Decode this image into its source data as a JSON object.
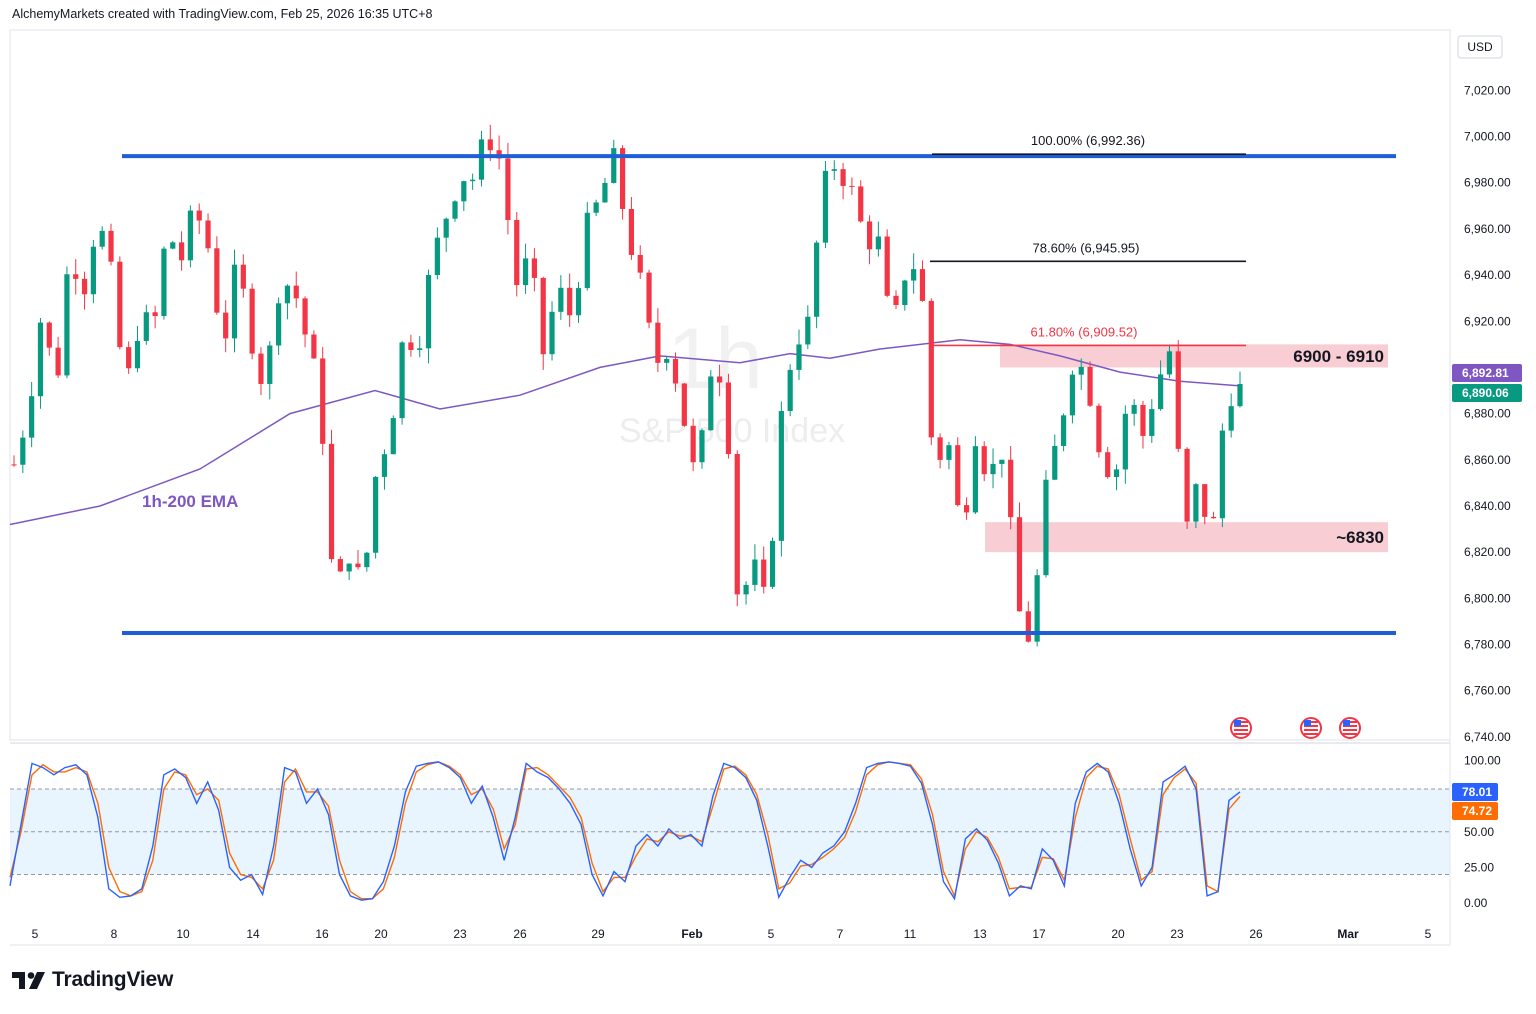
{
  "header": {
    "credit": "AlchemyMarkets created with TradingView.com, Feb 25, 2026 16:35 UTC+8"
  },
  "logo": {
    "text": "TradingView",
    "icon": "tradingview-logo-icon"
  },
  "chart_data": [
    {
      "type": "candlestick",
      "watermark": {
        "symbol": "1h",
        "name": "S&P 500 Index"
      },
      "currency": "USD",
      "y_ticks": [
        "7,020.00",
        "7,000.00",
        "6,980.00",
        "6,960.00",
        "6,940.00",
        "6,920.00",
        "6,880.00",
        "6,860.00",
        "6,840.00",
        "6,820.00",
        "6,800.00",
        "6,780.00",
        "6,760.00",
        "6,740.00"
      ],
      "ylim": [
        6740,
        7030
      ],
      "x_ticks": [
        "5",
        "8",
        "10",
        "14",
        "16",
        "20",
        "23",
        "26",
        "29",
        "Feb",
        "5",
        "7",
        "11",
        "13",
        "17",
        "20",
        "23",
        "26",
        "Mar",
        "5"
      ],
      "last_prices": [
        {
          "label": "6,892.81",
          "value": 6892.81,
          "color": "#7e57c2"
        },
        {
          "label": "6,890.06",
          "value": 6890.06,
          "color": "#089981"
        }
      ],
      "ema": {
        "label": "1h-200 EMA",
        "color": "#7e57c2"
      },
      "channel": {
        "top": 6991.5,
        "bottom": 6785,
        "color": "#1e5fd8"
      },
      "fib_levels": [
        {
          "label": "100.00% (6,992.36)",
          "value": 6992.36,
          "color": "#131722"
        },
        {
          "label": "78.60% (6,945.95)",
          "value": 6945.95,
          "color": "#131722"
        },
        {
          "label": "61.80% (6,909.52)",
          "value": 6909.52,
          "color": "#f23645"
        }
      ],
      "zones": [
        {
          "label": "6900 - 6910",
          "from": 6900,
          "to": 6910,
          "color": "#f7c6cc"
        },
        {
          "label": "~6830",
          "from": 6820,
          "to": 6833,
          "color": "#f7c6cc"
        }
      ],
      "candle_colors": {
        "up": "#089981",
        "down": "#f23645"
      },
      "price_path": [
        6858,
        6882,
        6925,
        6890,
        6952,
        6935,
        6966,
        6938,
        6888,
        6922,
        6915,
        6960,
        6947,
        6969,
        6951,
        6909,
        6944,
        6915,
        6890,
        6935,
        6937,
        6912,
        6886,
        6796,
        6822,
        6803,
        6855,
        6874,
        6915,
        6911,
        6945,
        6966,
        6984,
        6982,
        7002,
        6988,
        6936,
        6946,
        6906,
        6934,
        6922,
        6958,
        6972,
        6990,
        6961,
        6934,
        6901,
        6911,
        6881,
        6847,
        6900,
        6898,
        6795,
        6815,
        6795,
        6875,
        6913,
        6918,
        6975,
        6990,
        6978,
        6957,
        6955,
        6912,
        6943,
        6946,
        6856,
        6870,
        6827,
        6873,
        6852,
        6866,
        6796,
        6781,
        6843,
        6872,
        6904,
        6897,
        6864,
        6852,
        6889,
        6870,
        6893,
        6908,
        6825,
        6850,
        6825,
        6890,
        6890
      ],
      "stoch_ticks": [
        "100.00",
        "50.00",
        "25.00",
        "0.00"
      ],
      "stoch_values": [
        {
          "label": "78.01",
          "value": 78.01,
          "color": "#2962ff"
        },
        {
          "label": "74.72",
          "value": 74.72,
          "color": "#ff6d00"
        }
      ],
      "stoch_k": [
        12,
        55,
        98,
        95,
        90,
        95,
        97,
        90,
        60,
        10,
        4,
        5,
        10,
        40,
        90,
        94,
        88,
        70,
        85,
        65,
        25,
        16,
        20,
        6,
        40,
        95,
        92,
        70,
        80,
        62,
        20,
        5,
        2,
        3,
        15,
        40,
        78,
        96,
        98,
        99,
        95,
        88,
        70,
        82,
        60,
        30,
        60,
        98,
        92,
        88,
        80,
        70,
        55,
        20,
        5,
        22,
        15,
        40,
        48,
        40,
        52,
        45,
        48,
        40,
        75,
        98,
        95,
        88,
        72,
        40,
        4,
        18,
        30,
        25,
        35,
        40,
        50,
        70,
        95,
        98,
        99,
        98,
        96,
        84,
        55,
        15,
        3,
        45,
        52,
        44,
        28,
        5,
        12,
        10,
        38,
        30,
        12,
        70,
        92,
        98,
        92,
        70,
        38,
        12,
        25,
        85,
        90,
        96,
        80,
        5,
        8,
        72,
        78
      ],
      "stoch_d": [
        18,
        50,
        90,
        97,
        92,
        92,
        95,
        92,
        70,
        25,
        8,
        5,
        8,
        30,
        80,
        92,
        90,
        76,
        80,
        72,
        35,
        20,
        18,
        10,
        30,
        85,
        94,
        78,
        78,
        68,
        30,
        8,
        3,
        3,
        10,
        32,
        70,
        92,
        97,
        99,
        96,
        90,
        76,
        80,
        66,
        38,
        55,
        94,
        95,
        90,
        82,
        74,
        60,
        28,
        8,
        18,
        18,
        33,
        45,
        43,
        50,
        47,
        47,
        43,
        68,
        94,
        96,
        90,
        76,
        48,
        10,
        14,
        26,
        27,
        32,
        38,
        46,
        64,
        90,
        97,
        99,
        98,
        97,
        87,
        62,
        22,
        5,
        38,
        50,
        46,
        32,
        10,
        11,
        11,
        32,
        31,
        16,
        60,
        88,
        96,
        94,
        76,
        45,
        16,
        22,
        76,
        88,
        94,
        84,
        12,
        8,
        66,
        74.72
      ]
    }
  ]
}
